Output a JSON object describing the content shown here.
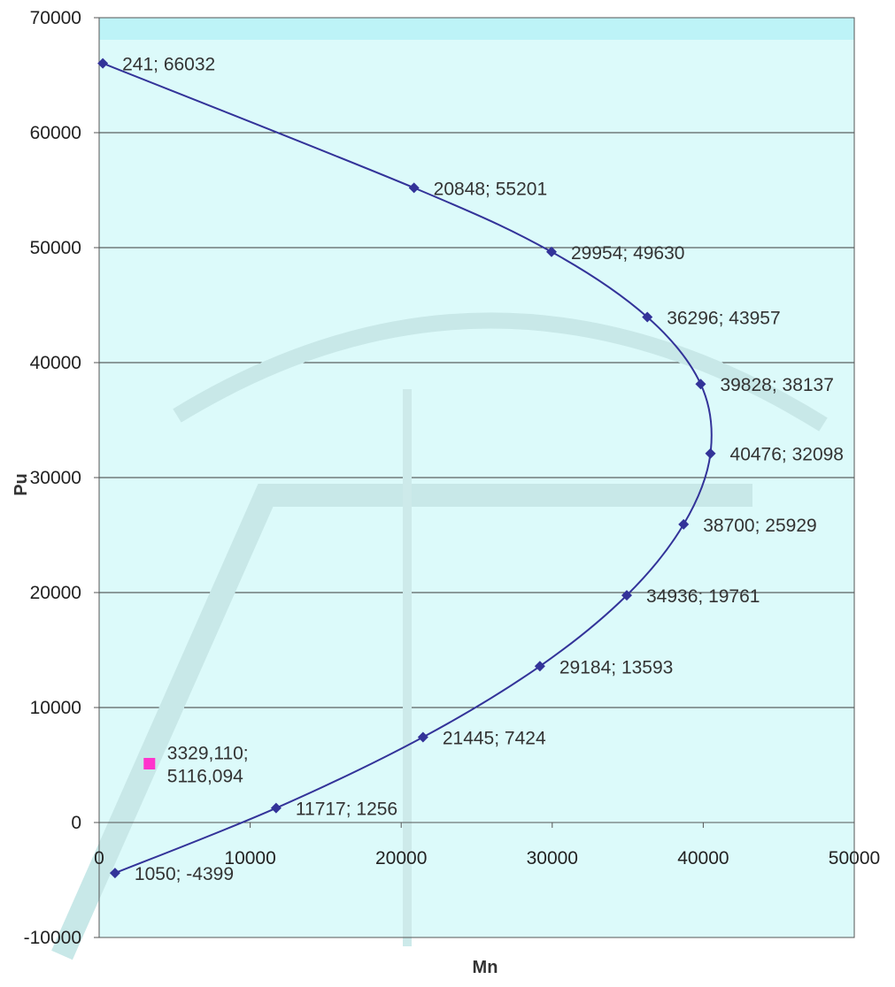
{
  "chart_data": {
    "type": "scatter",
    "title": "",
    "xlabel": "Mn",
    "ylabel": "Pu",
    "xlim": [
      0,
      50000
    ],
    "ylim": [
      -10000,
      70000
    ],
    "x_ticks": [
      0,
      10000,
      20000,
      30000,
      40000,
      50000
    ],
    "y_ticks": [
      -10000,
      0,
      10000,
      20000,
      30000,
      40000,
      50000,
      60000,
      70000
    ],
    "x_tick_labels": [
      "0",
      "10000",
      "20000",
      "30000",
      "40000",
      "50000"
    ],
    "y_tick_labels": [
      "-10000",
      "0",
      "10000",
      "20000",
      "30000",
      "40000",
      "50000",
      "60000",
      "70000"
    ],
    "grid": "horizontal",
    "legend": "none",
    "plot_background": "#dcfafa",
    "series": [
      {
        "type": "line-with-markers",
        "smooth": true,
        "color": "#333399",
        "marker": "diamond",
        "points": [
          {
            "x": 241,
            "y": 66032,
            "label": "241; 66032"
          },
          {
            "x": 20848,
            "y": 55201,
            "label": "20848; 55201"
          },
          {
            "x": 29954,
            "y": 49630,
            "label": "29954; 49630"
          },
          {
            "x": 36296,
            "y": 43957,
            "label": "36296; 43957"
          },
          {
            "x": 39828,
            "y": 38137,
            "label": "39828; 38137"
          },
          {
            "x": 40476,
            "y": 32098,
            "label": "40476; 32098"
          },
          {
            "x": 38700,
            "y": 25929,
            "label": "38700; 25929"
          },
          {
            "x": 34936,
            "y": 19761,
            "label": "34936; 19761"
          },
          {
            "x": 29184,
            "y": 13593,
            "label": "29184; 13593"
          },
          {
            "x": 21445,
            "y": 7424,
            "label": "21445; 7424"
          },
          {
            "x": 11717,
            "y": 1256,
            "label": "11717; 1256"
          },
          {
            "x": 1050,
            "y": -4399,
            "label": "1050; -4399"
          }
        ]
      },
      {
        "type": "scatter",
        "color": "#ff33cc",
        "marker": "square",
        "points": [
          {
            "x": 3329.11,
            "y": 5116.094,
            "label_lines": [
              "3329,110;",
              "5116,094"
            ]
          }
        ]
      }
    ]
  }
}
